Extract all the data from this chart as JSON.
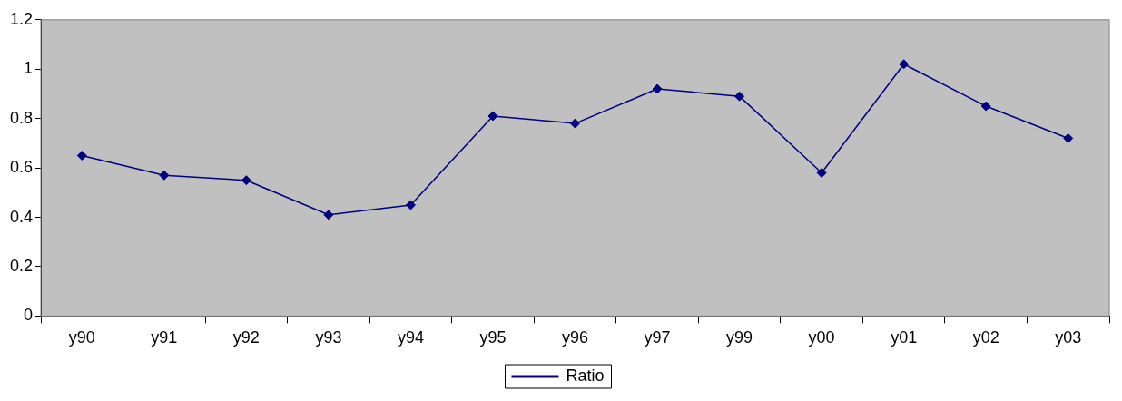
{
  "chart_data": {
    "type": "line",
    "categories": [
      "y90",
      "y91",
      "y92",
      "y93",
      "y94",
      "y95",
      "y96",
      "y97",
      "y99",
      "y00",
      "y01",
      "y02",
      "y03"
    ],
    "series": [
      {
        "name": "Ratio",
        "color": "#000080",
        "values": [
          0.65,
          0.57,
          0.55,
          0.41,
          0.45,
          0.81,
          0.78,
          0.92,
          0.89,
          0.58,
          1.02,
          0.85,
          0.72
        ]
      }
    ],
    "ylim": [
      0,
      1.2
    ],
    "yticks": [
      0,
      0.2,
      0.4,
      0.6,
      0.8,
      1,
      1.2
    ],
    "grid": false,
    "legend": "bottom",
    "marker": "diamond",
    "line_style": "solid"
  }
}
